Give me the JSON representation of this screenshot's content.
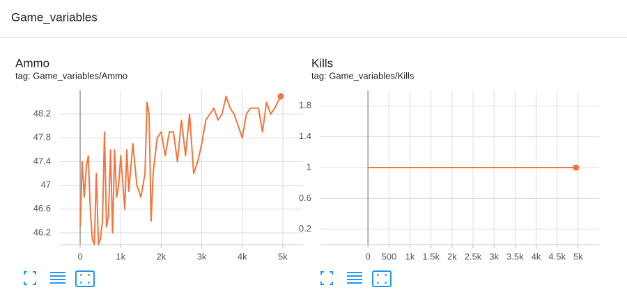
{
  "header": {
    "title": "Game_variables"
  },
  "chart_data": [
    {
      "type": "line",
      "title": "Ammo",
      "subtitle": "tag: Game_variables/Ammo",
      "x": [
        0,
        50,
        100,
        150,
        200,
        250,
        300,
        350,
        400,
        450,
        500,
        550,
        600,
        650,
        700,
        750,
        800,
        850,
        900,
        950,
        1000,
        1100,
        1150,
        1200,
        1300,
        1400,
        1500,
        1600,
        1650,
        1700,
        1750,
        1800,
        1900,
        2000,
        2100,
        2200,
        2300,
        2400,
        2500,
        2600,
        2700,
        2800,
        2900,
        3000,
        3100,
        3200,
        3300,
        3400,
        3500,
        3600,
        3700,
        3800,
        4000,
        4100,
        4200,
        4300,
        4400,
        4500,
        4600,
        4700,
        4800,
        4950
      ],
      "series": [
        {
          "color": "#f4743b",
          "values": [
            46.3,
            47.4,
            46.8,
            47.3,
            47.5,
            46.6,
            46.1,
            46.0,
            47.2,
            46.0,
            46.1,
            46.4,
            47.9,
            46.3,
            46.5,
            47.6,
            46.2,
            47.6,
            46.8,
            47.0,
            47.5,
            46.6,
            47.6,
            46.9,
            47.7,
            47.0,
            46.8,
            47.2,
            48.4,
            48.2,
            46.4,
            47.2,
            47.8,
            47.9,
            47.5,
            47.9,
            47.9,
            47.4,
            48.1,
            47.5,
            48.2,
            47.2,
            47.4,
            47.7,
            48.1,
            48.2,
            48.3,
            48.1,
            48.2,
            48.5,
            48.3,
            48.2,
            47.8,
            48.2,
            48.3,
            48.3,
            48.3,
            47.9,
            48.4,
            48.2,
            48.3,
            48.5
          ]
        }
      ],
      "xlim": [
        -500,
        5500
      ],
      "ylim": [
        46.0,
        48.6
      ],
      "xticks": [
        {
          "value": 0,
          "label": "0"
        },
        {
          "value": 1000,
          "label": "1k"
        },
        {
          "value": 2000,
          "label": "2k"
        },
        {
          "value": 3000,
          "label": "3k"
        },
        {
          "value": 4000,
          "label": "4k"
        },
        {
          "value": 5000,
          "label": "5k"
        }
      ],
      "yticks": [
        46.2,
        46.6,
        47,
        47.4,
        47.8,
        48.2
      ],
      "grid": true
    },
    {
      "type": "line",
      "title": "Kills",
      "subtitle": "tag: Game_variables/Kills",
      "x": [
        0,
        4950
      ],
      "series": [
        {
          "color": "#f4743b",
          "values": [
            1,
            1
          ]
        }
      ],
      "xlim": [
        -1130,
        5500
      ],
      "ylim": [
        0,
        2
      ],
      "xticks": [
        0,
        500,
        {
          "value": 1000,
          "label": "1k"
        },
        {
          "value": 1500,
          "label": "1.5k"
        },
        {
          "value": 2000,
          "label": "2k"
        },
        {
          "value": 2500,
          "label": "2.5k"
        },
        {
          "value": 3000,
          "label": "3k"
        },
        {
          "value": 3500,
          "label": "3.5k"
        },
        {
          "value": 4000,
          "label": "4k"
        },
        {
          "value": 4500,
          "label": "4.5k"
        },
        {
          "value": 5000,
          "label": "5k"
        }
      ],
      "yticks": [
        0.2,
        0.6,
        1,
        1.4,
        1.8
      ],
      "grid": true
    }
  ]
}
